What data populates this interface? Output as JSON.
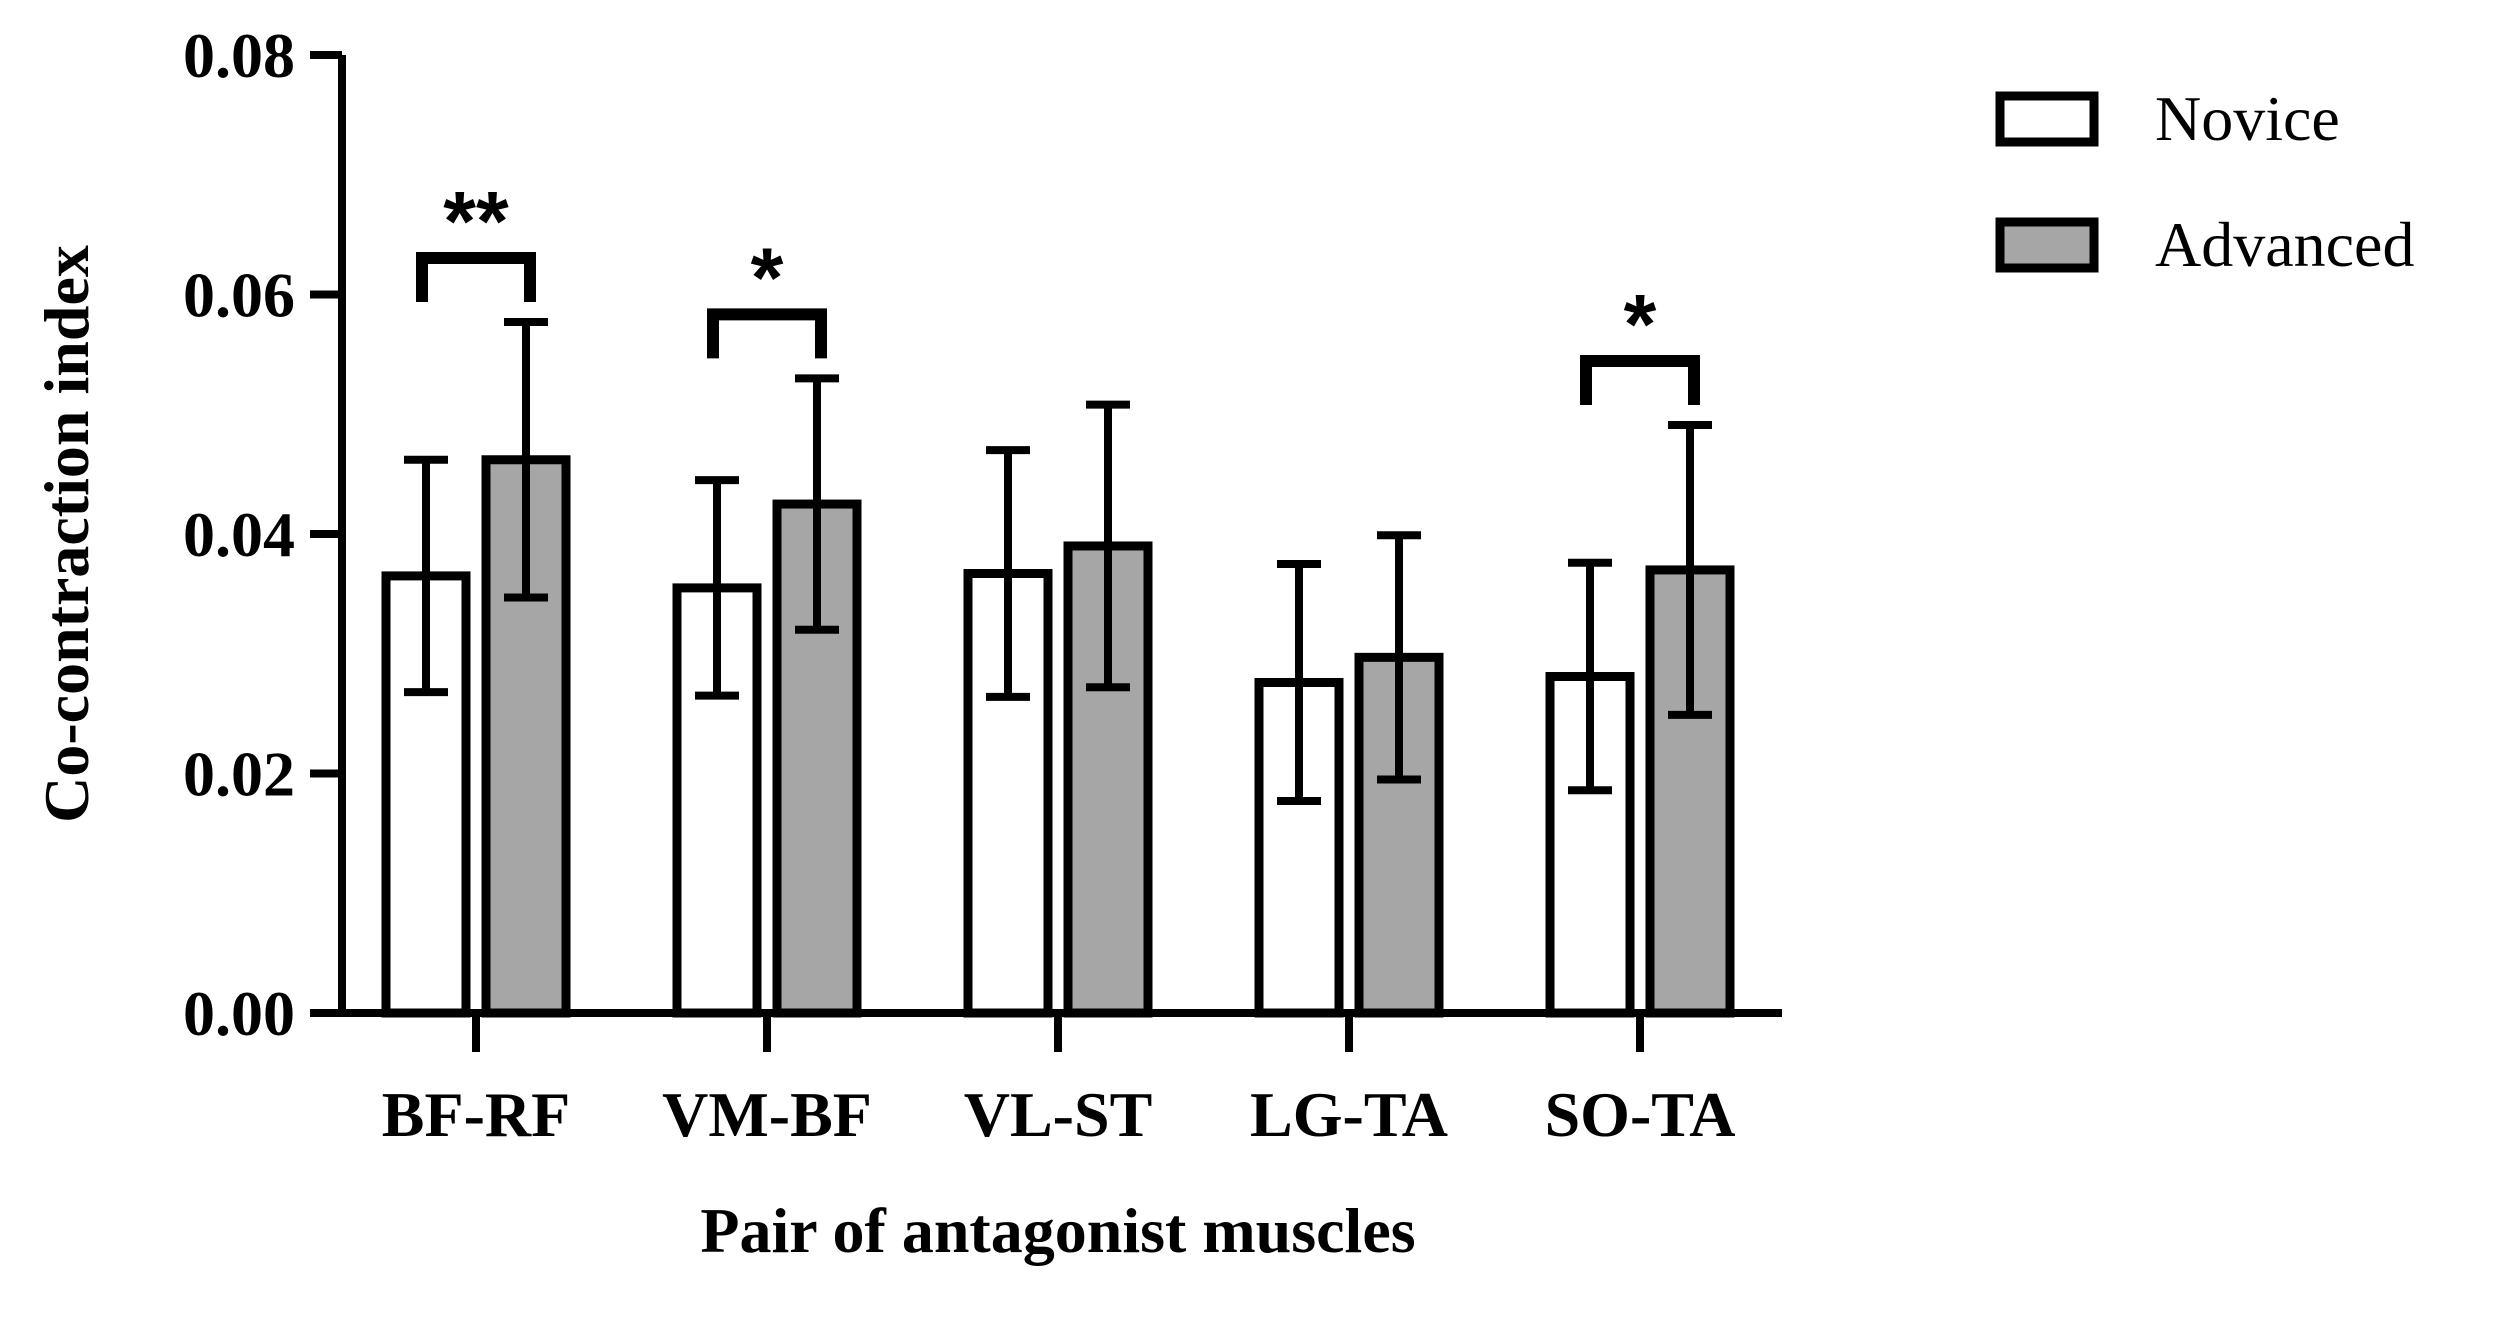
{
  "chart_data": {
    "type": "bar",
    "xlabel": "Pair of antagonist muscles",
    "ylabel": "Co-contraction index",
    "ylim": [
      0,
      0.08
    ],
    "yticks": [
      "0.00",
      "0.02",
      "0.04",
      "0.06",
      "0.08"
    ],
    "categories": [
      "BF-RF",
      "VM-BF",
      "VL-ST",
      "LG-TA",
      "SO-TA"
    ],
    "series": [
      {
        "name": "Novice",
        "color": "#ffffff",
        "values": [
          0.0365,
          0.0355,
          0.0367,
          0.0276,
          0.0281
        ],
        "errors": [
          0.0097,
          0.009,
          0.0103,
          0.0099,
          0.0095
        ]
      },
      {
        "name": "Advanced",
        "color": "#a6a6a6",
        "values": [
          0.0462,
          0.0425,
          0.039,
          0.0297,
          0.037
        ],
        "errors": [
          0.0115,
          0.0105,
          0.0118,
          0.0102,
          0.0121
        ]
      }
    ],
    "significance": [
      {
        "category": "BF-RF",
        "label": "**"
      },
      {
        "category": "VM-BF",
        "label": "*"
      },
      {
        "category": "SO-TA",
        "label": "*"
      }
    ],
    "legend_position": "top-right",
    "grid": false
  }
}
